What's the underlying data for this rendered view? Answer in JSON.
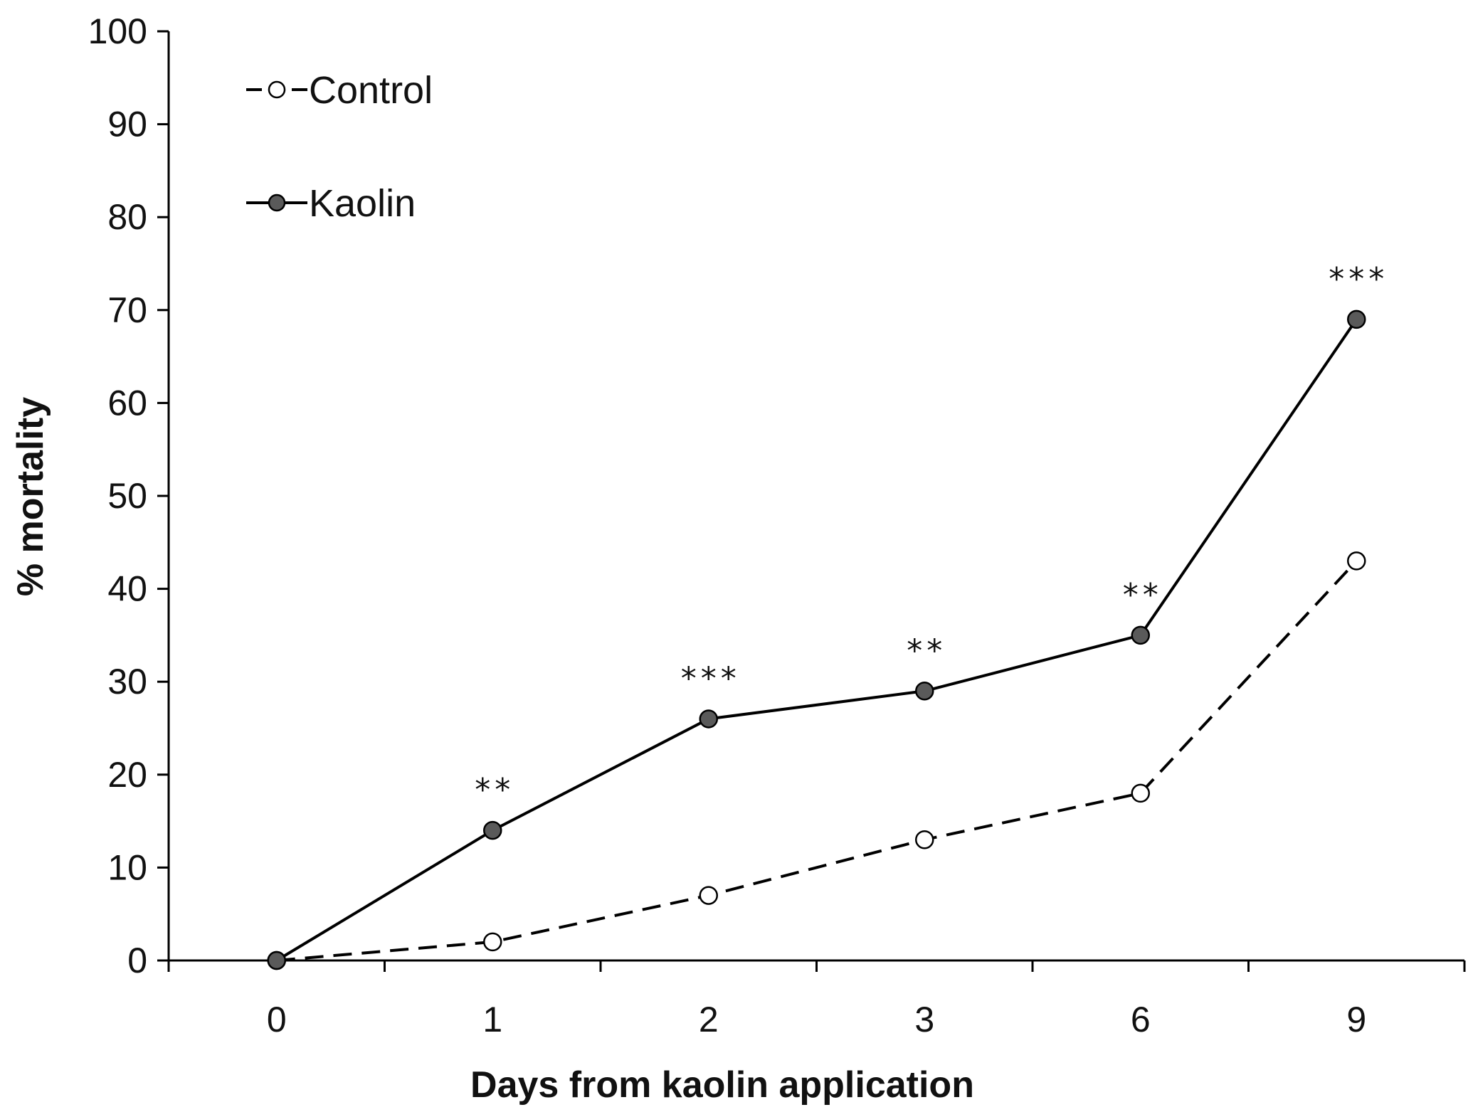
{
  "chart_data": {
    "type": "line",
    "title": "",
    "xlabel": "Days from kaolin application",
    "ylabel": "% mortality",
    "categories": [
      "0",
      "1",
      "2",
      "3",
      "6",
      "9"
    ],
    "ylim": [
      0,
      100
    ],
    "yticks": [
      "0",
      "10",
      "20",
      "30",
      "40",
      "50",
      "60",
      "70",
      "80",
      "90",
      "100"
    ],
    "grid": false,
    "legend_position": "top-left",
    "series": [
      {
        "name": "Control",
        "values": [
          0,
          2,
          7,
          13,
          18,
          43
        ],
        "line_style": "dashed",
        "marker": "open-circle",
        "color": "#000000",
        "marker_fill": "#ffffff"
      },
      {
        "name": "Kaolin",
        "values": [
          0,
          14,
          26,
          29,
          35,
          69
        ],
        "line_style": "solid",
        "marker": "filled-circle",
        "color": "#000000",
        "marker_fill": "#5a5a5a"
      }
    ],
    "annotations": [
      {
        "category": "1",
        "text": "**"
      },
      {
        "category": "2",
        "text": "***"
      },
      {
        "category": "3",
        "text": "**"
      },
      {
        "category": "6",
        "text": "**"
      },
      {
        "category": "9",
        "text": "***"
      }
    ]
  }
}
